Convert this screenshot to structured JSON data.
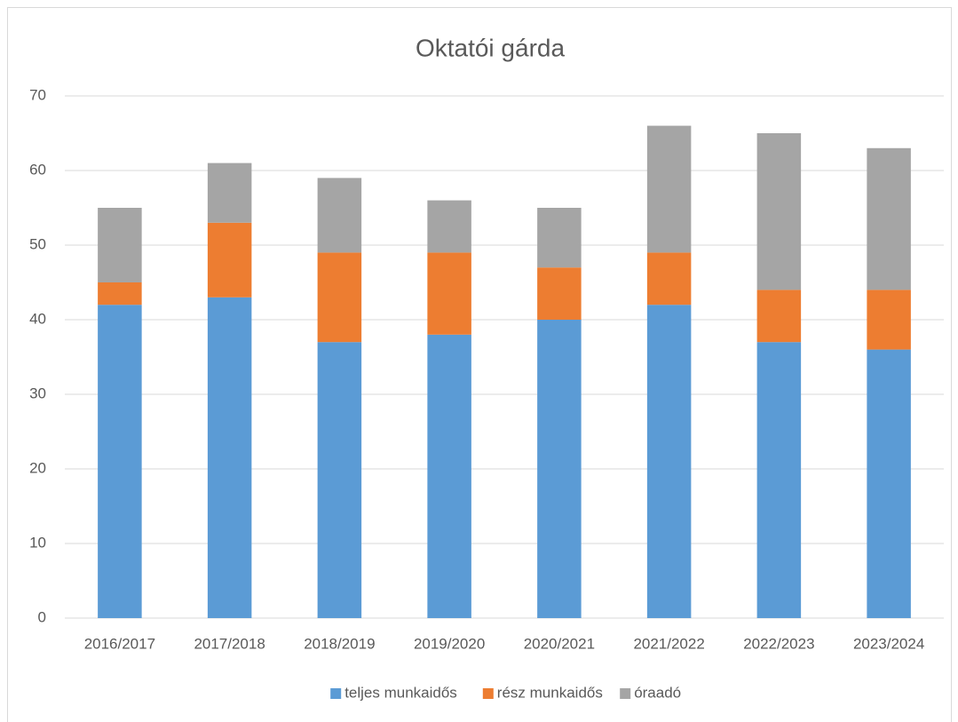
{
  "chart_data": {
    "type": "bar",
    "stacked": true,
    "title": "Oktatói gárda",
    "categories": [
      "2016/2017",
      "2017/2018",
      "2018/2019",
      "2019/2020",
      "2020/2021",
      "2021/2022",
      "2022/2023",
      "2023/2024"
    ],
    "series": [
      {
        "name": "teljes munkaidős",
        "color": "#5b9bd5",
        "values": [
          42,
          43,
          37,
          38,
          40,
          42,
          37,
          36
        ]
      },
      {
        "name": "rész munkaidős",
        "color": "#ed7d31",
        "values": [
          3,
          10,
          12,
          11,
          7,
          7,
          7,
          8
        ]
      },
      {
        "name": "óraadó",
        "color": "#a5a5a5",
        "values": [
          10,
          8,
          10,
          7,
          8,
          17,
          21,
          19
        ]
      }
    ],
    "ylim": [
      0,
      70
    ],
    "yticks": [
      0,
      10,
      20,
      30,
      40,
      50,
      60,
      70
    ],
    "grid": true,
    "legend": "bottom"
  }
}
